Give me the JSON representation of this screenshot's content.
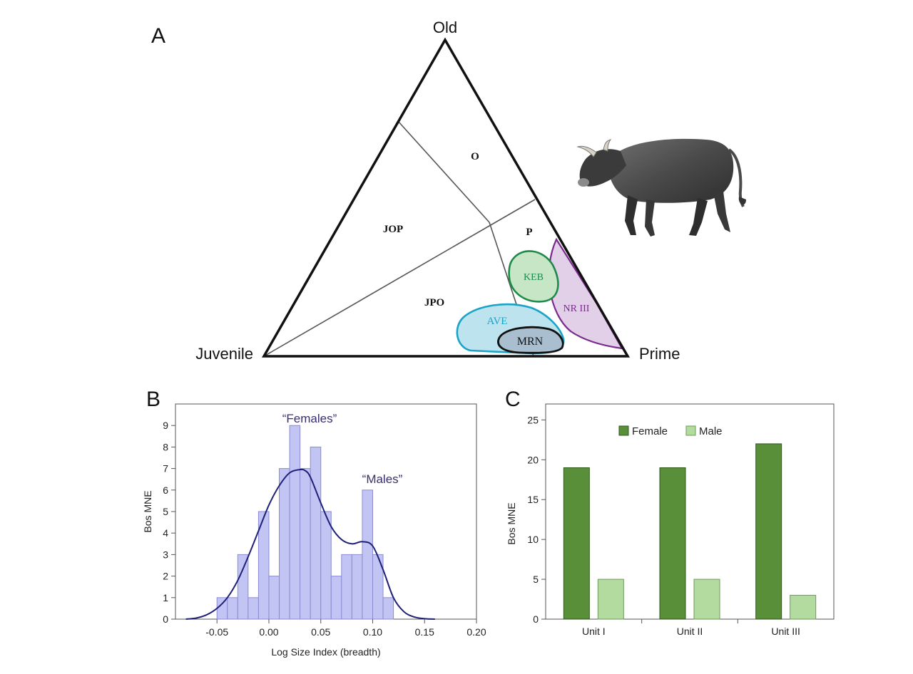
{
  "panels": {
    "a": "A",
    "b": "B",
    "c": "C"
  },
  "ternary": {
    "type": "ternary",
    "vertices": {
      "top": "Old",
      "left": "Juvenile",
      "right": "Prime"
    },
    "zones": [
      "O",
      "JOP",
      "P",
      "JPO"
    ],
    "sites": [
      {
        "id": "KEB",
        "label": "KEB",
        "color": "#1d8a4a",
        "fill": "#c7e6c6"
      },
      {
        "id": "NRIII",
        "label": "NR III",
        "color": "#7a2b8c",
        "fill": "#e2d0e8"
      },
      {
        "id": "AVE",
        "label": "AVE",
        "color": "#1aa3c4",
        "fill": "#bde3ef"
      },
      {
        "id": "MRN",
        "label": "MRN",
        "color": "#111111",
        "fill": "#a9bfcf"
      }
    ],
    "illustration": "aurochs-illustration"
  },
  "chart_data": [
    {
      "type": "histogram",
      "panel": "B",
      "xlabel": "Log Size Index (breadth)",
      "ylabel": "Bos MNE",
      "xlim": [
        -0.09,
        0.2
      ],
      "ylim": [
        0,
        10
      ],
      "xticks": [
        "-0.05",
        "0.00",
        "0.05",
        "0.10",
        "0.15",
        "0.20"
      ],
      "xtick_values": [
        -0.05,
        0.0,
        0.05,
        0.1,
        0.15,
        0.2
      ],
      "yticks": [
        "0",
        "1",
        "2",
        "3",
        "4",
        "5",
        "6",
        "7",
        "8",
        "9"
      ],
      "bin_width": 0.01,
      "bins": [
        {
          "x0": -0.05,
          "count": 1
        },
        {
          "x0": -0.04,
          "count": 1
        },
        {
          "x0": -0.03,
          "count": 3
        },
        {
          "x0": -0.02,
          "count": 1
        },
        {
          "x0": -0.01,
          "count": 5
        },
        {
          "x0": 0.0,
          "count": 2
        },
        {
          "x0": 0.01,
          "count": 7
        },
        {
          "x0": 0.02,
          "count": 9
        },
        {
          "x0": 0.03,
          "count": 7
        },
        {
          "x0": 0.04,
          "count": 8
        },
        {
          "x0": 0.05,
          "count": 5
        },
        {
          "x0": 0.06,
          "count": 2
        },
        {
          "x0": 0.07,
          "count": 3
        },
        {
          "x0": 0.08,
          "count": 3
        },
        {
          "x0": 0.09,
          "count": 6
        },
        {
          "x0": 0.1,
          "count": 3
        },
        {
          "x0": 0.11,
          "count": 1
        }
      ],
      "density_curve": {
        "x": [
          -0.08,
          -0.07,
          -0.06,
          -0.05,
          -0.04,
          -0.03,
          -0.02,
          -0.01,
          0.0,
          0.01,
          0.02,
          0.03,
          0.035,
          0.04,
          0.05,
          0.06,
          0.07,
          0.08,
          0.09,
          0.1,
          0.11,
          0.12,
          0.13,
          0.14,
          0.15,
          0.16
        ],
        "y": [
          0.0,
          0.05,
          0.2,
          0.5,
          1.0,
          1.8,
          2.9,
          4.1,
          5.3,
          6.2,
          6.8,
          6.95,
          6.9,
          6.6,
          5.4,
          4.3,
          3.7,
          3.5,
          3.6,
          3.4,
          2.3,
          1.0,
          0.35,
          0.1,
          0.02,
          0.0
        ]
      },
      "annotations": [
        "“Females”",
        "“Males”"
      ],
      "bar_fill": "#c2c4f4",
      "bar_edge": "#8a8cd0",
      "curve_color": "#1f1f7a",
      "annotation_color": "#3b2e6e"
    },
    {
      "type": "bar",
      "panel": "C",
      "ylabel": "Bos MNE",
      "categories": [
        "Unit I",
        "Unit II",
        "Unit III"
      ],
      "ylim": [
        0,
        27
      ],
      "yticks": [
        "0",
        "5",
        "10",
        "15",
        "20",
        "25"
      ],
      "ytick_values": [
        0,
        5,
        10,
        15,
        20,
        25
      ],
      "series": [
        {
          "name": "Female",
          "values": [
            19,
            19,
            22
          ],
          "color": "#5a8f3a",
          "edge": "#2f5a1e"
        },
        {
          "name": "Male",
          "values": [
            5,
            5,
            3
          ],
          "color": "#b3dba0",
          "edge": "#6d9b5a"
        }
      ],
      "legend_position": "top"
    }
  ]
}
